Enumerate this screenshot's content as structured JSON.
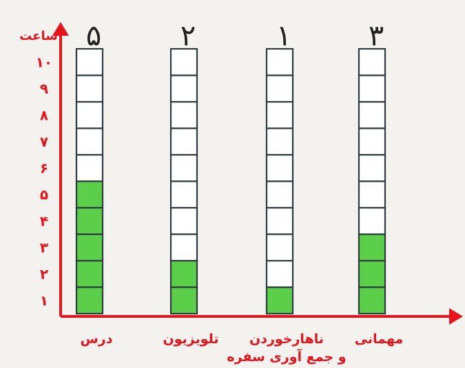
{
  "chart_data": {
    "type": "bar",
    "y_axis_label": "ساعت",
    "y_ticks": [
      "۱",
      "۲",
      "۳",
      "۴",
      "۵",
      "۶",
      "۷",
      "۸",
      "۹",
      "۱۰"
    ],
    "ylim": [
      0,
      10
    ],
    "categories": [
      "درس",
      "تلویزیون",
      "ناهارخوردن و جمع آوری سفره",
      "مهمانی"
    ],
    "category_lines": [
      [
        "درس"
      ],
      [
        "تلویزیون"
      ],
      [
        "ناهارخوردن",
        "و جمع آوری سفره"
      ],
      [
        "مهمانی"
      ]
    ],
    "values": [
      5,
      2,
      1,
      3
    ],
    "handwritten_labels": [
      "۵",
      "۲",
      "۱",
      "۳"
    ],
    "filled_color": "#5ccf4a",
    "empty_color": "#ffffff",
    "grid_line_color": "#2d3a3f",
    "axis_color": "#e8141b"
  }
}
